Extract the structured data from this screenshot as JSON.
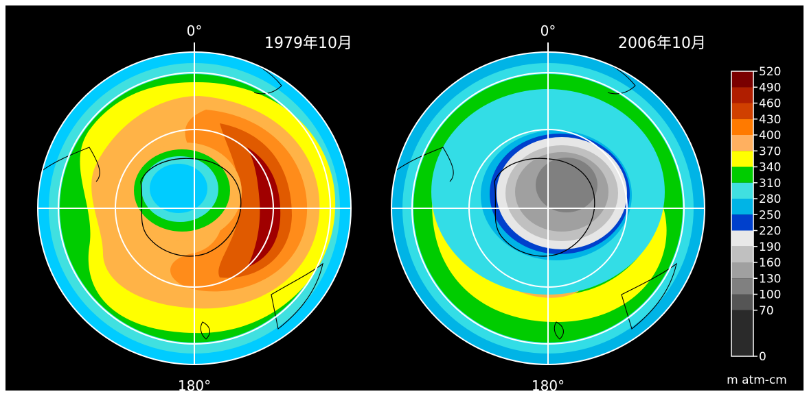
{
  "panels": [
    {
      "id": "1979",
      "title": "1979年10月",
      "top_label": "0°",
      "bottom_label": "180°",
      "rings": [
        "#00ccff",
        "#00e6e6",
        "#00cc00",
        "#ffff00",
        "#ffb347",
        "#ff8c1a",
        "#e05a00",
        "#a00000"
      ]
    },
    {
      "id": "2006",
      "title": "2006年10月",
      "top_label": "0°",
      "bottom_label": "180°",
      "rings": [
        "#00b4e6",
        "#33dde6",
        "#00cc00",
        "#ffff00",
        "#ffb347",
        "#00cc00",
        "#33dde6",
        "#00b4e6",
        "#0040cc",
        "#e6e6e6",
        "#a0a0a0"
      ]
    }
  ],
  "colorbar": {
    "unit": "m atm-cm",
    "ticks": [
      "520",
      "490",
      "460",
      "430",
      "400",
      "370",
      "340",
      "310",
      "280",
      "250",
      "220",
      "190",
      "160",
      "130",
      "100",
      "70",
      "0"
    ],
    "colors": [
      "#7a0000",
      "#b01e00",
      "#d04000",
      "#ff7a00",
      "#ffb060",
      "#ffff00",
      "#00cc00",
      "#40e0e0",
      "#00b4e6",
      "#0040cc",
      "#e8e8e8",
      "#c0c0c0",
      "#a0a0a0",
      "#808080",
      "#555555",
      "#2a2a2a"
    ]
  }
}
